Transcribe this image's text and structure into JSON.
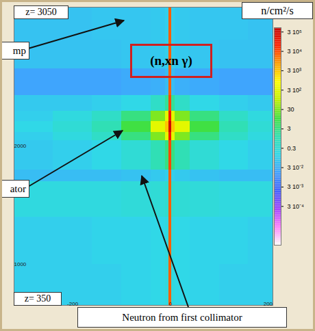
{
  "chart_data": {
    "type": "heatmap",
    "xlim": [
      -320,
      210
    ],
    "ylim": [
      650,
      3180
    ],
    "xticks": [
      -200,
      0,
      200
    ],
    "yticks": [
      1000,
      2000
    ],
    "x_edges": [
      -320,
      -240,
      -160,
      -100,
      -40,
      -10,
      -3,
      3,
      10,
      40,
      100,
      160,
      210
    ],
    "y_edges": [
      650,
      1000,
      1400,
      1700,
      1800,
      2050,
      2120,
      2210,
      2300,
      2430,
      2660,
      2900,
      3180
    ],
    "values": [
      [
        0.1,
        0.1,
        0.1,
        0.12,
        0.15,
        0.2,
        20000,
        0.2,
        0.15,
        0.12,
        0.1,
        0.1
      ],
      [
        0.1,
        0.1,
        0.12,
        0.12,
        0.15,
        0.2,
        20000,
        0.2,
        0.15,
        0.12,
        0.12,
        0.1
      ],
      [
        0.2,
        0.2,
        0.2,
        0.25,
        0.3,
        0.4,
        20000,
        0.4,
        0.3,
        0.25,
        0.2,
        0.2
      ],
      [
        0.05,
        0.05,
        0.05,
        0.06,
        0.08,
        0.1,
        20000,
        0.1,
        0.08,
        0.06,
        0.05,
        0.05
      ],
      [
        0.08,
        0.1,
        0.15,
        0.3,
        1,
        3,
        30000,
        3,
        1,
        0.3,
        0.15,
        0.1
      ],
      [
        0.1,
        0.2,
        0.5,
        3,
        30,
        300,
        100000,
        300,
        30,
        3,
        0.5,
        0.2
      ],
      [
        0.15,
        0.3,
        1,
        10,
        300,
        3000,
        300000,
        3000,
        300,
        10,
        1,
        0.3
      ],
      [
        0.1,
        0.2,
        0.5,
        3,
        30,
        300,
        100000,
        300,
        30,
        3,
        0.5,
        0.2
      ],
      [
        0.08,
        0.08,
        0.1,
        0.15,
        0.5,
        2,
        30000,
        2,
        0.5,
        0.15,
        0.1,
        0.08
      ],
      [
        0.02,
        0.02,
        0.02,
        0.025,
        0.03,
        0.05,
        20000,
        0.05,
        0.03,
        0.025,
        0.02,
        0.02
      ],
      [
        0.06,
        0.06,
        0.06,
        0.07,
        0.08,
        0.1,
        20000,
        0.1,
        0.08,
        0.07,
        0.06,
        0.06
      ],
      [
        0.06,
        0.06,
        0.07,
        0.07,
        0.08,
        0.1,
        20000,
        0.1,
        0.08,
        0.07,
        0.07,
        0.06
      ]
    ],
    "colorbar": {
      "label": "n/cm²/s",
      "range": [
        3e-06,
        500000
      ],
      "ticks": [
        {
          "value": 300000,
          "label": "3 10⁵"
        },
        {
          "value": 30000,
          "label": "3 10⁴"
        },
        {
          "value": 3000,
          "label": "3 10³"
        },
        {
          "value": 300,
          "label": "3 10²"
        },
        30,
        3,
        0.3,
        {
          "value": 0.03,
          "label": "3 10⁻²"
        },
        {
          "value": 0.003,
          "label": "3 10⁻³"
        },
        {
          "value": 0.0003,
          "label": "3 10⁻⁴"
        }
      ]
    },
    "annotations": [
      "z= 3050",
      "z= 350",
      "mp",
      "(n,xn γ)",
      "ator",
      "Neutron from first collimator"
    ]
  }
}
